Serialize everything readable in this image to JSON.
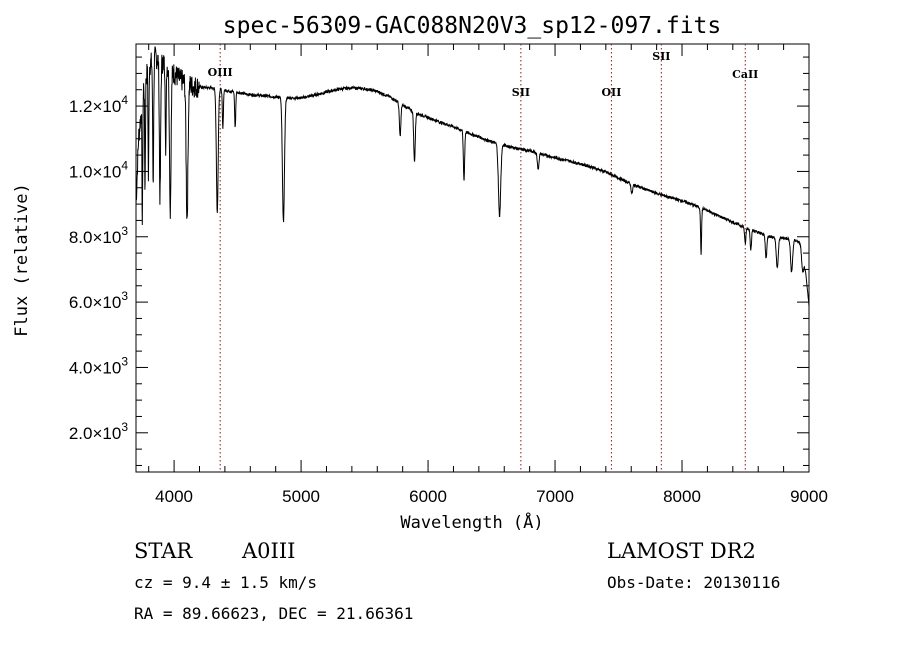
{
  "chart_data": {
    "type": "line",
    "title": "spec-56309-GAC088N20V3_sp12-097.fits",
    "xlabel": "Wavelength (Å)",
    "ylabel": "Flux (relative)",
    "xlim": [
      3700,
      9000
    ],
    "ylim": [
      800,
      13900
    ],
    "x_ticks": [
      4000,
      5000,
      6000,
      7000,
      8000,
      9000
    ],
    "x_tick_labels": [
      "4000",
      "5000",
      "6000",
      "7000",
      "8000",
      "9000"
    ],
    "y_ticks": [
      2000,
      4000,
      6000,
      8000,
      10000,
      12000
    ],
    "y_tick_labels": [
      {
        "mant": "2.0",
        "exp": "3"
      },
      {
        "mant": "4.0",
        "exp": "3"
      },
      {
        "mant": "6.0",
        "exp": "3"
      },
      {
        "mant": "8.0",
        "exp": "3"
      },
      {
        "mant": "1.0",
        "exp": "4"
      },
      {
        "mant": "1.2",
        "exp": "4"
      }
    ],
    "series": [
      {
        "color": "#000000",
        "continuum": [
          [
            3700,
            9000
          ],
          [
            3720,
            11000
          ],
          [
            3760,
            12600
          ],
          [
            3800,
            13200
          ],
          [
            3850,
            13500
          ],
          [
            3950,
            13200
          ],
          [
            4050,
            12800
          ],
          [
            4150,
            12600
          ],
          [
            4300,
            12550
          ],
          [
            4450,
            12450
          ],
          [
            4600,
            12350
          ],
          [
            4750,
            12300
          ],
          [
            4900,
            12250
          ],
          [
            5000,
            12250
          ],
          [
            5100,
            12330
          ],
          [
            5200,
            12430
          ],
          [
            5300,
            12520
          ],
          [
            5400,
            12560
          ],
          [
            5500,
            12530
          ],
          [
            5600,
            12450
          ],
          [
            5700,
            12280
          ],
          [
            5800,
            12030
          ],
          [
            5900,
            11800
          ],
          [
            6000,
            11650
          ],
          [
            6100,
            11500
          ],
          [
            6200,
            11370
          ],
          [
            6300,
            11200
          ],
          [
            6400,
            11060
          ],
          [
            6500,
            10900
          ],
          [
            6600,
            10800
          ],
          [
            6700,
            10700
          ],
          [
            6800,
            10630
          ],
          [
            6900,
            10520
          ],
          [
            7000,
            10420
          ],
          [
            7100,
            10330
          ],
          [
            7200,
            10230
          ],
          [
            7300,
            10120
          ],
          [
            7400,
            9980
          ],
          [
            7500,
            9800
          ],
          [
            7600,
            9620
          ],
          [
            7700,
            9470
          ],
          [
            7800,
            9330
          ],
          [
            7900,
            9210
          ],
          [
            8000,
            9100
          ],
          [
            8100,
            8960
          ],
          [
            8200,
            8800
          ],
          [
            8300,
            8620
          ],
          [
            8400,
            8450
          ],
          [
            8500,
            8280
          ],
          [
            8600,
            8130
          ],
          [
            8700,
            8000
          ],
          [
            8800,
            7960
          ],
          [
            8900,
            7880
          ],
          [
            8950,
            7750
          ],
          [
            9000,
            5900
          ]
        ],
        "absorption_lines": [
          {
            "x": 3750,
            "depth": 3800,
            "width": 3
          },
          {
            "x": 3771,
            "depth": 3300,
            "width": 3
          },
          {
            "x": 3798,
            "depth": 3400,
            "width": 3
          },
          {
            "x": 3835,
            "depth": 3700,
            "width": 4
          },
          {
            "x": 3889,
            "depth": 4200,
            "width": 5
          },
          {
            "x": 3934,
            "depth": 3000,
            "width": 3
          },
          {
            "x": 3970,
            "depth": 4300,
            "width": 6
          },
          {
            "x": 4102,
            "depth": 4100,
            "width": 7
          },
          {
            "x": 4340,
            "depth": 3800,
            "width": 7
          },
          {
            "x": 4384,
            "depth": 1200,
            "width": 4
          },
          {
            "x": 4481,
            "depth": 1100,
            "width": 4
          },
          {
            "x": 4861,
            "depth": 3800,
            "width": 8
          },
          {
            "x": 5780,
            "depth": 1000,
            "width": 6
          },
          {
            "x": 5893,
            "depth": 1500,
            "width": 6
          },
          {
            "x": 6283,
            "depth": 1500,
            "width": 5
          },
          {
            "x": 6563,
            "depth": 2200,
            "width": 9
          },
          {
            "x": 6867,
            "depth": 500,
            "width": 6
          },
          {
            "x": 7605,
            "depth": 300,
            "width": 6
          },
          {
            "x": 8150,
            "depth": 1400,
            "width": 4
          },
          {
            "x": 8498,
            "depth": 500,
            "width": 5
          },
          {
            "x": 8542,
            "depth": 600,
            "width": 5
          },
          {
            "x": 8662,
            "depth": 700,
            "width": 6
          },
          {
            "x": 8750,
            "depth": 900,
            "width": 8
          },
          {
            "x": 8863,
            "depth": 1000,
            "width": 8
          },
          {
            "x": 8950,
            "depth": 800,
            "width": 8
          }
        ]
      }
    ],
    "marker_lines": [
      {
        "x": 4363,
        "label": "OIII"
      },
      {
        "x": 6731,
        "label": "SII"
      },
      {
        "x": 7444,
        "label": "OII"
      },
      {
        "x": 7837,
        "label": "SII"
      },
      {
        "x": 8498,
        "label": "CaII"
      }
    ]
  },
  "info": {
    "class": "STAR",
    "subclass": "A0III",
    "survey": "LAMOST DR2",
    "cz": "cz = 9.4 ± 1.5 km/s",
    "obs_date": "Obs-Date: 20130116",
    "radec": "RA =  89.66623, DEC =  21.66361"
  }
}
